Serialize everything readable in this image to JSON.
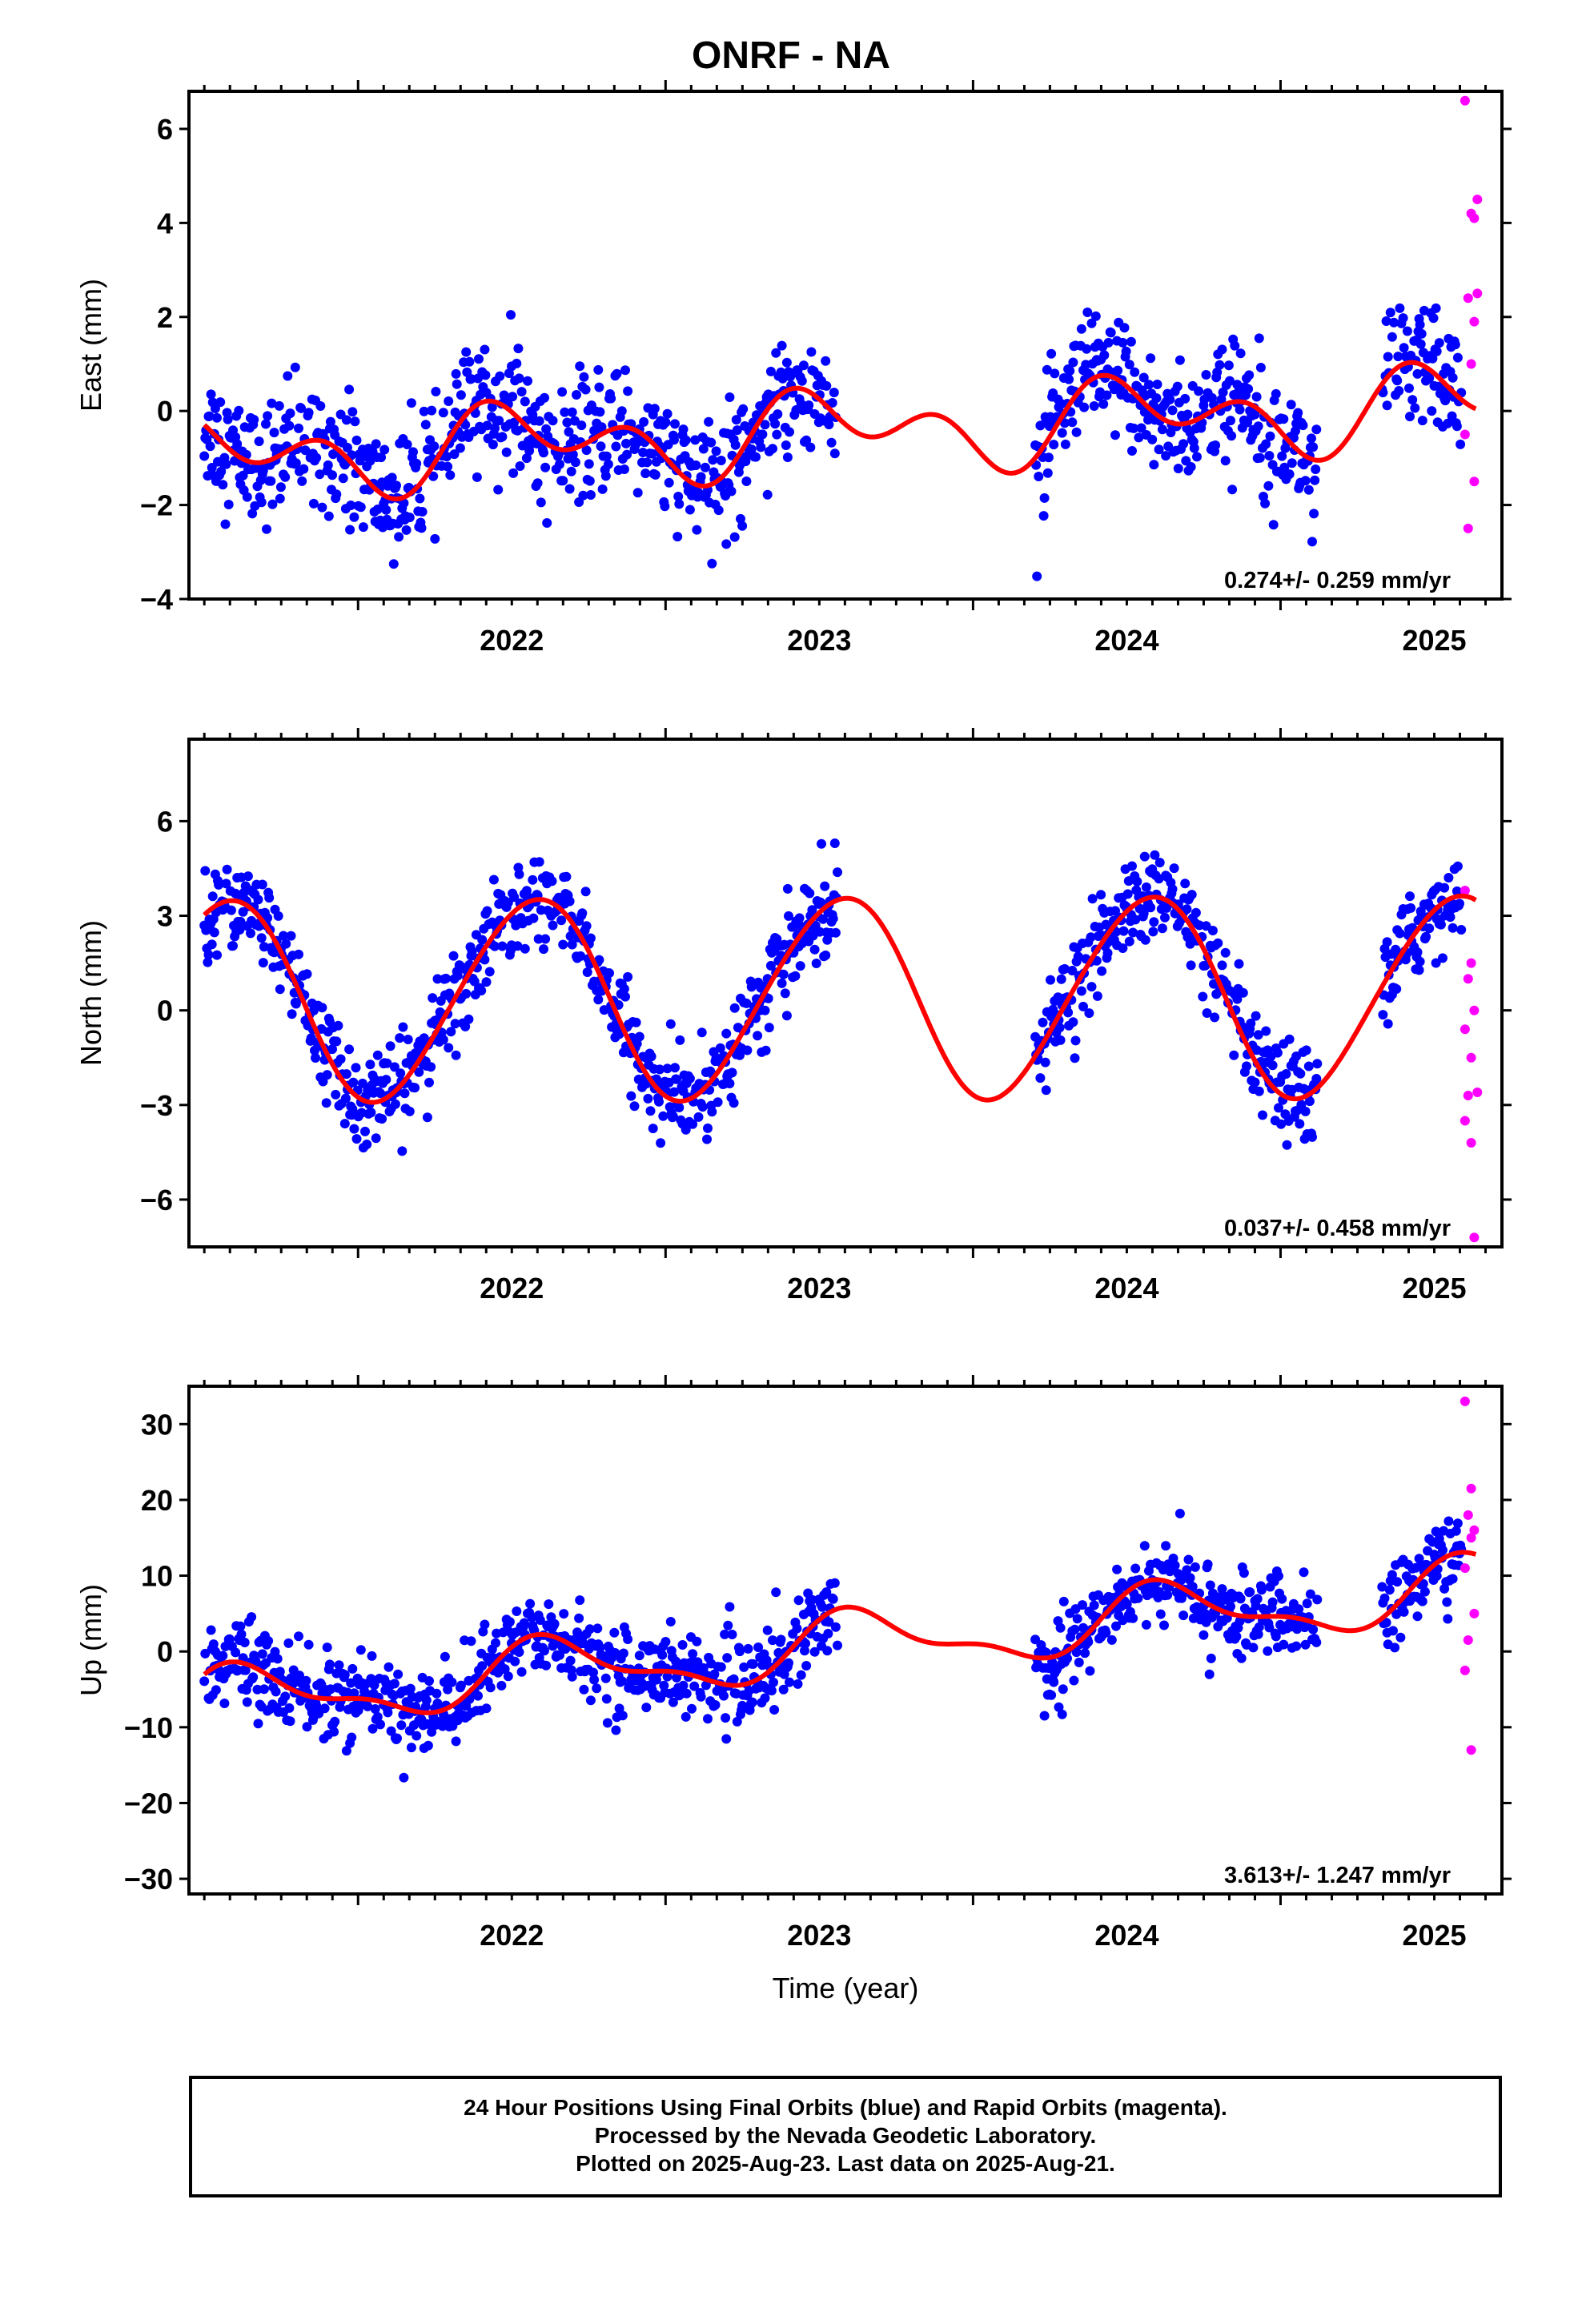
{
  "title": "ONRF - NA",
  "colors": {
    "final_orbits": "#0000ff",
    "rapid_orbits": "#ff00ff",
    "model": "#ff0000"
  },
  "chart_data": [
    {
      "type": "scatter",
      "ylabel": "East (mm)",
      "xlabel": "",
      "xlim": [
        2021.45,
        2025.72
      ],
      "ylim": [
        -4,
        6.8
      ],
      "yticks": [
        -4,
        -2,
        0,
        2,
        4,
        6
      ],
      "xticks": [
        2022,
        2023,
        2024,
        2025
      ],
      "rate": "0.274+/- 0.259 mm/yr",
      "model": {
        "base": -0.45,
        "trend": 0.274,
        "annual": [
          -0.55,
          -0.15
        ],
        "semiannual": [
          0.15,
          -0.55
        ],
        "t0": 2023.5
      },
      "noise": 0.85,
      "gaps": [
        [
          2023.56,
          2024.2
        ],
        [
          2025.12,
          2025.33
        ]
      ],
      "rapid_points": [
        [
          2025.6,
          6.6
        ],
        [
          2025.62,
          4.2
        ],
        [
          2025.63,
          4.1
        ],
        [
          2025.64,
          4.5
        ],
        [
          2025.61,
          2.4
        ],
        [
          2025.63,
          1.9
        ],
        [
          2025.62,
          1.0
        ],
        [
          2025.6,
          -0.5
        ],
        [
          2025.63,
          -1.5
        ],
        [
          2025.61,
          -2.5
        ],
        [
          2025.64,
          2.5
        ]
      ]
    },
    {
      "type": "scatter",
      "ylabel": "North (mm)",
      "xlabel": "",
      "xlim": [
        2021.45,
        2025.72
      ],
      "ylim": [
        -7.5,
        8.6
      ],
      "yticks": [
        -6,
        -3,
        0,
        3,
        6
      ],
      "xticks": [
        2022,
        2023,
        2024,
        2025
      ],
      "rate": "0.037+/- 0.458 mm/yr",
      "model": {
        "base": 0.4,
        "trend": 0.037,
        "annual": [
          -2.9,
          -1.3
        ],
        "semiannual": [
          -0.2,
          0.1
        ],
        "t0": 2023.5
      },
      "noise": 0.95,
      "gaps": [
        [
          2023.56,
          2024.2
        ],
        [
          2025.12,
          2025.33
        ]
      ],
      "rapid_points": [
        [
          2025.6,
          3.8
        ],
        [
          2025.62,
          1.5
        ],
        [
          2025.61,
          1.0
        ],
        [
          2025.63,
          0.0
        ],
        [
          2025.6,
          -0.6
        ],
        [
          2025.62,
          -1.5
        ],
        [
          2025.61,
          -2.7
        ],
        [
          2025.64,
          -2.6
        ],
        [
          2025.62,
          -4.2
        ],
        [
          2025.63,
          -7.2
        ],
        [
          2025.6,
          -3.5
        ]
      ]
    },
    {
      "type": "scatter",
      "ylabel": "Up (mm)",
      "xlabel": "Time (year)",
      "xlim": [
        2021.45,
        2025.72
      ],
      "ylim": [
        -32,
        35
      ],
      "yticks": [
        -30,
        -20,
        -10,
        0,
        10,
        20,
        30
      ],
      "xticks": [
        2022,
        2023,
        2024,
        2025
      ],
      "rate": "3.613+/- 1.247 mm/yr",
      "model": {
        "base": 0.5,
        "trend": 3.613,
        "annual": [
          -2.5,
          -2.8
        ],
        "semiannual": [
          1.2,
          1.0
        ],
        "t0": 2023.5
      },
      "noise": 3.6,
      "gaps": [
        [
          2023.56,
          2024.2
        ],
        [
          2025.12,
          2025.33
        ]
      ],
      "rapid_points": [
        [
          2025.6,
          33
        ],
        [
          2025.62,
          21.5
        ],
        [
          2025.61,
          18
        ],
        [
          2025.63,
          16
        ],
        [
          2025.62,
          15
        ],
        [
          2025.6,
          11
        ],
        [
          2025.63,
          5
        ],
        [
          2025.61,
          1.5
        ],
        [
          2025.6,
          -2.5
        ],
        [
          2025.62,
          -13
        ]
      ]
    }
  ],
  "footer": {
    "line1": "24 Hour Positions Using Final Orbits (blue) and Rapid Orbits (magenta).",
    "line2": "Processed by the Nevada Geodetic Laboratory.",
    "line3": "Plotted on 2025-Aug-23. Last data on 2025-Aug-21."
  }
}
